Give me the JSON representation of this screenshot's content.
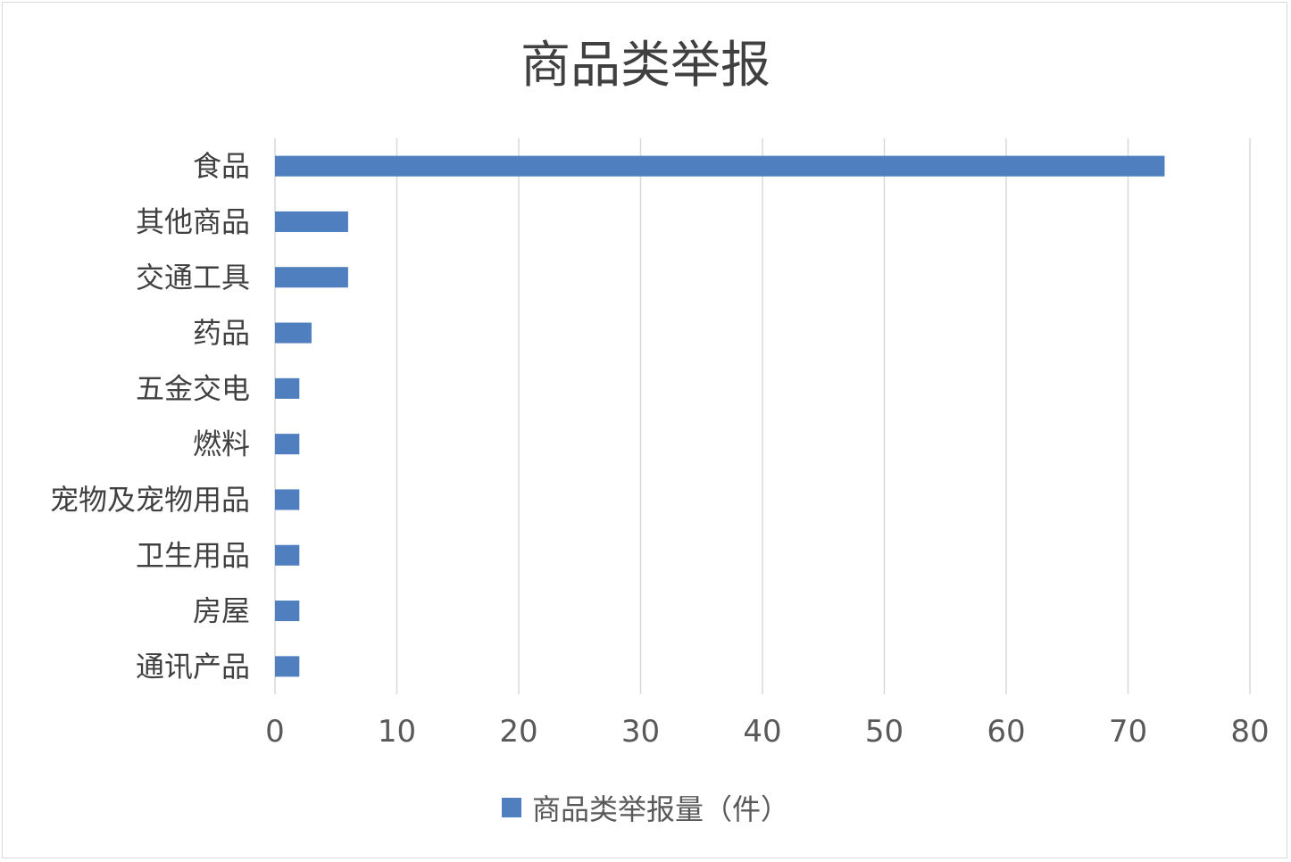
{
  "chart_data": {
    "type": "bar",
    "orientation": "horizontal",
    "title": "商品类举报",
    "categories": [
      "食品",
      "其他商品",
      "交通工具",
      "药品",
      "五金交电",
      "燃料",
      "宠物及宠物用品",
      "卫生用品",
      "房屋",
      "通讯产品"
    ],
    "series": [
      {
        "name": "商品类举报量（件）",
        "values": [
          73,
          6,
          6,
          3,
          2,
          2,
          2,
          2,
          2,
          2
        ],
        "color": "#4f7fbf"
      }
    ],
    "xlim": [
      0,
      80
    ],
    "xticks": [
      "0",
      "10",
      "20",
      "30",
      "40",
      "50",
      "60",
      "70",
      "80"
    ],
    "grid": "vertical",
    "legend_position": "bottom"
  }
}
